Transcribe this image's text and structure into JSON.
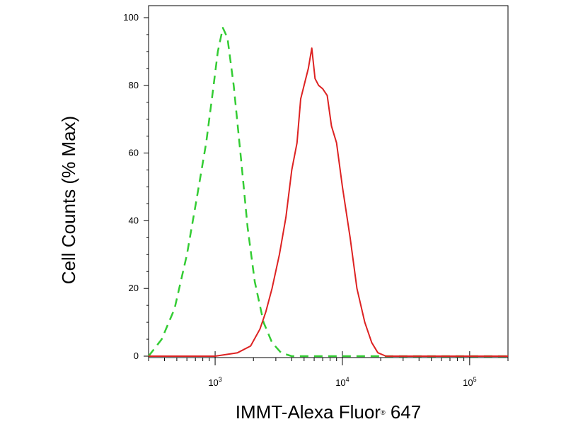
{
  "chart_data": {
    "type": "line",
    "title": "",
    "xlabel": "IMMT-Alexa Fluor",
    "xlabel_mark": "®",
    "xlabel_suffix": " 647",
    "ylabel": "Cell Counts (% Max)",
    "xscale": "log",
    "xlim": [
      300,
      200000
    ],
    "ylim": [
      0,
      100
    ],
    "y_ticks": [
      0,
      20,
      40,
      60,
      80,
      100
    ],
    "x_ticks": [
      {
        "value": 1000,
        "base": "10",
        "exp": "3"
      },
      {
        "value": 10000,
        "base": "10",
        "exp": "4"
      },
      {
        "value": 100000,
        "base": "10",
        "exp": "5"
      }
    ],
    "grid": false,
    "legend": "none",
    "series": [
      {
        "color": "#33cc33",
        "dash": true,
        "points": [
          [
            300,
            0
          ],
          [
            380,
            5
          ],
          [
            480,
            14
          ],
          [
            600,
            30
          ],
          [
            720,
            47
          ],
          [
            850,
            63
          ],
          [
            950,
            77
          ],
          [
            1050,
            90
          ],
          [
            1150,
            97
          ],
          [
            1250,
            94
          ],
          [
            1400,
            80
          ],
          [
            1600,
            58
          ],
          [
            1800,
            38
          ],
          [
            2050,
            22
          ],
          [
            2400,
            10
          ],
          [
            2800,
            4
          ],
          [
            3300,
            1
          ],
          [
            4000,
            0
          ],
          [
            25000,
            0
          ],
          [
            200000,
            0
          ]
        ]
      },
      {
        "color": "#dd2222",
        "dash": false,
        "points": [
          [
            300,
            0
          ],
          [
            1000,
            0
          ],
          [
            1500,
            1
          ],
          [
            1900,
            3
          ],
          [
            2250,
            8
          ],
          [
            2500,
            13
          ],
          [
            2800,
            20
          ],
          [
            3200,
            30
          ],
          [
            3600,
            41
          ],
          [
            4000,
            55
          ],
          [
            4400,
            63
          ],
          [
            4700,
            76
          ],
          [
            5000,
            80
          ],
          [
            5400,
            85
          ],
          [
            5750,
            91
          ],
          [
            6100,
            82
          ],
          [
            6500,
            80
          ],
          [
            7000,
            79
          ],
          [
            7600,
            77
          ],
          [
            8200,
            68
          ],
          [
            9000,
            63
          ],
          [
            10000,
            50
          ],
          [
            11500,
            35
          ],
          [
            13000,
            20
          ],
          [
            15000,
            10
          ],
          [
            17000,
            4
          ],
          [
            19000,
            1
          ],
          [
            22000,
            0
          ],
          [
            200000,
            0
          ]
        ]
      }
    ]
  }
}
